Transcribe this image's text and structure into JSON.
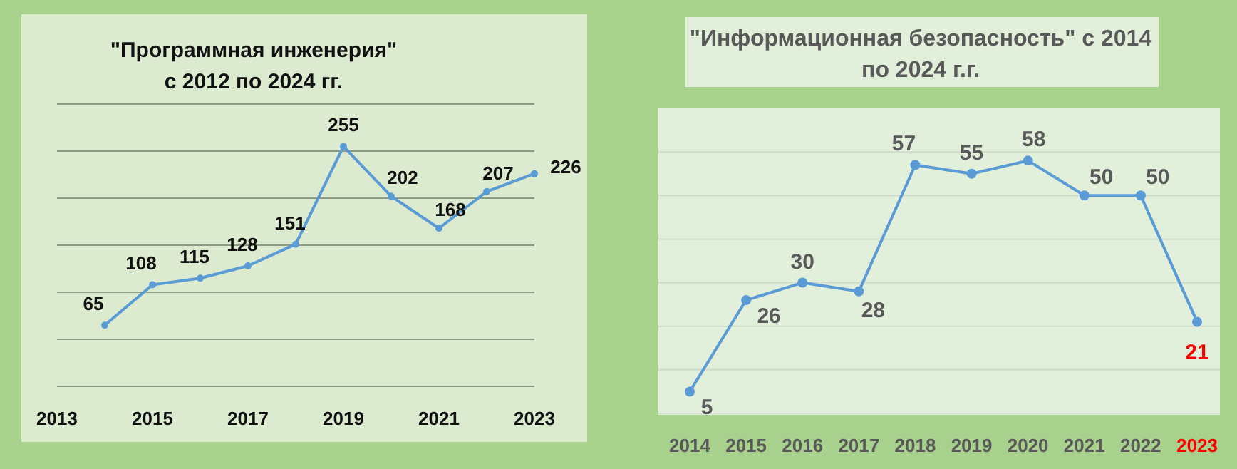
{
  "chart_data": [
    {
      "type": "line",
      "title": "\"Программная инженерия\"\nс 2012 по 2024 гг.",
      "categories": [
        "2013",
        null,
        "2015",
        null,
        "2017",
        null,
        "2019",
        null,
        "2021",
        null,
        "2023"
      ],
      "series": [
        {
          "color": "#5b9bd5",
          "values": [
            null,
            65,
            108,
            115,
            128,
            151,
            255,
            202,
            168,
            207,
            226
          ]
        }
      ],
      "ylim": [
        0,
        300
      ],
      "yticks": [
        {
          "value": 0,
          "label": null
        },
        {
          "value": 50,
          "label": null
        },
        {
          "value": 100,
          "label": null
        },
        {
          "value": 150,
          "label": null
        },
        {
          "value": 200,
          "label": null
        },
        {
          "value": 250,
          "label": null
        },
        {
          "value": 300,
          "label": null
        }
      ],
      "grid": "y",
      "tick_labels": "x",
      "data_labels": true,
      "marker": "circle"
    },
    {
      "type": "line",
      "title": "\"Информационная безопасность\" с 2014\nпо 2024 г.г.",
      "categories": [
        "2014",
        "2015",
        "2016",
        "2017",
        "2018",
        "2019",
        "2020",
        "2021",
        "2022",
        "2023"
      ],
      "series": [
        {
          "color": "#5b9bd5",
          "values": [
            5,
            26,
            30,
            28,
            57,
            55,
            58,
            50,
            50,
            21
          ]
        }
      ],
      "ylim": [
        0,
        70
      ],
      "yticks": [
        {
          "value": 0,
          "label": null
        },
        {
          "value": 10,
          "label": null
        },
        {
          "value": 20,
          "label": null
        },
        {
          "value": 30,
          "label": null
        },
        {
          "value": 40,
          "label": null
        },
        {
          "value": 50,
          "label": null
        },
        {
          "value": 60,
          "label": null
        }
      ],
      "grid": "y",
      "tick_labels": "x",
      "data_labels": true,
      "marker": "circle"
    }
  ]
}
